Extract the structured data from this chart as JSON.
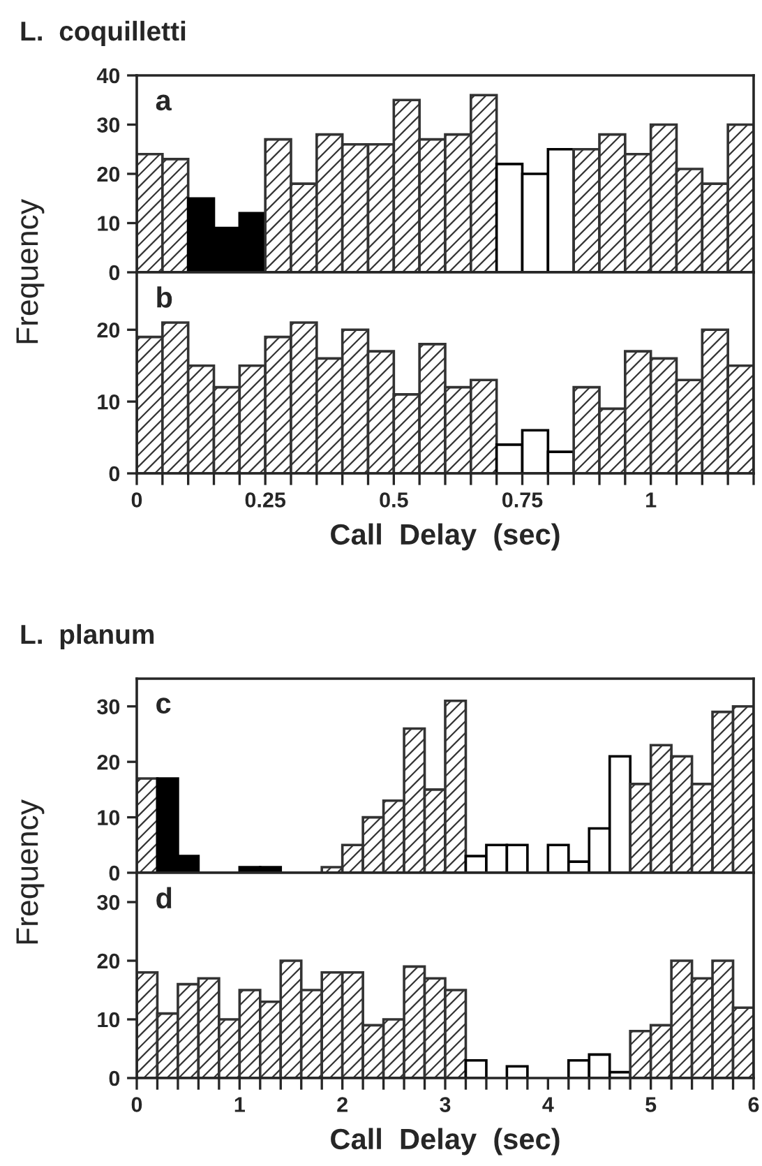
{
  "chart_data": [
    {
      "type": "histogram",
      "title": "L.  coquilletti",
      "annotations": [
        "a"
      ],
      "ylabel": "Frequency",
      "tick_labels": "y",
      "xlim": [
        0,
        1.2
      ],
      "ylim": [
        0,
        40
      ],
      "yticks": [
        0,
        10,
        20,
        30,
        40
      ],
      "bins": [
        0,
        0.05,
        0.1,
        0.15,
        0.2,
        0.25,
        0.3,
        0.35,
        0.4,
        0.45,
        0.5,
        0.55,
        0.6,
        0.65,
        0.7,
        0.75,
        0.8,
        0.85,
        0.9,
        0.95,
        1,
        1.05,
        1.1,
        1.15,
        1.2
      ],
      "values": [
        24,
        23,
        15,
        9,
        12,
        27,
        18,
        28,
        26,
        26,
        35,
        27,
        28,
        36,
        22,
        20,
        25,
        25,
        28,
        24,
        30,
        21,
        18,
        30
      ],
      "colors": [
        "#333333",
        "#333333",
        "#000000",
        "#000000",
        "#000000",
        "#333333",
        "#333333",
        "#333333",
        "#333333",
        "#333333",
        "#333333",
        "#333333",
        "#333333",
        "#333333",
        "#ffffff",
        "#ffffff",
        "#ffffff",
        "#333333",
        "#333333",
        "#333333",
        "#333333",
        "#333333",
        "#333333",
        "#333333"
      ]
    },
    {
      "type": "histogram",
      "annotations": [
        "b"
      ],
      "xlabel": "Call  Delay  (sec)",
      "xlim": [
        0,
        1.2
      ],
      "ylim": [
        0,
        28
      ],
      "yticks": [
        0,
        10,
        20
      ],
      "xticks": [
        0,
        {
          "value": 0.05,
          "label": null
        },
        {
          "value": 0.1,
          "label": null
        },
        {
          "value": 0.15,
          "label": null
        },
        {
          "value": 0.2,
          "label": null
        },
        0.25,
        {
          "value": 0.3,
          "label": null
        },
        {
          "value": 0.35,
          "label": null
        },
        {
          "value": 0.4,
          "label": null
        },
        {
          "value": 0.45,
          "label": null
        },
        0.5,
        {
          "value": 0.55,
          "label": null
        },
        {
          "value": 0.6,
          "label": null
        },
        {
          "value": 0.65,
          "label": null
        },
        {
          "value": 0.7,
          "label": null
        },
        0.75,
        {
          "value": 0.8,
          "label": null
        },
        {
          "value": 0.85,
          "label": null
        },
        {
          "value": 0.9,
          "label": null
        },
        {
          "value": 0.95,
          "label": null
        },
        1,
        {
          "value": 1.05,
          "label": null
        },
        {
          "value": 1.1,
          "label": null
        },
        {
          "value": 1.15,
          "label": null
        },
        {
          "value": 1.2,
          "label": null
        }
      ],
      "bins": [
        0,
        0.05,
        0.1,
        0.15,
        0.2,
        0.25,
        0.3,
        0.35,
        0.4,
        0.45,
        0.5,
        0.55,
        0.6,
        0.65,
        0.7,
        0.75,
        0.8,
        0.85,
        0.9,
        0.95,
        1,
        1.05,
        1.1,
        1.15,
        1.2
      ],
      "values": [
        19,
        21,
        15,
        12,
        15,
        19,
        21,
        16,
        20,
        17,
        11,
        18,
        12,
        13,
        4,
        6,
        3,
        12,
        9,
        17,
        16,
        13,
        20,
        15
      ],
      "colors": [
        "#333333",
        "#333333",
        "#333333",
        "#333333",
        "#333333",
        "#333333",
        "#333333",
        "#333333",
        "#333333",
        "#333333",
        "#333333",
        "#333333",
        "#333333",
        "#333333",
        "#ffffff",
        "#ffffff",
        "#ffffff",
        "#333333",
        "#333333",
        "#333333",
        "#333333",
        "#333333",
        "#333333",
        "#333333"
      ]
    },
    {
      "type": "histogram",
      "title": "L.  planum",
      "annotations": [
        "c"
      ],
      "ylabel": "Frequency",
      "tick_labels": "y",
      "xlim": [
        0,
        6
      ],
      "ylim": [
        0,
        35
      ],
      "yticks": [
        0,
        10,
        20,
        30
      ],
      "bins": [
        0,
        0.2,
        0.4,
        0.6,
        0.8,
        1,
        1.2,
        1.4,
        1.6,
        1.8,
        2,
        2.2,
        2.4,
        2.6,
        2.8,
        3,
        3.2,
        3.4,
        3.6,
        3.8,
        4,
        4.2,
        4.4,
        4.6,
        4.8,
        5,
        5.2,
        5.4,
        5.6,
        5.8,
        6
      ],
      "values": [
        17,
        17,
        3,
        0,
        0,
        1,
        1,
        0,
        0,
        1,
        5,
        10,
        13,
        26,
        15,
        31,
        3,
        5,
        5,
        0,
        5,
        2,
        8,
        21,
        16,
        23,
        21,
        16,
        29,
        30
      ],
      "colors": [
        "#333333",
        "#000000",
        "#000000",
        "#ffffff",
        "#ffffff",
        "#000000",
        "#000000",
        "#ffffff",
        "#ffffff",
        "#333333",
        "#333333",
        "#333333",
        "#333333",
        "#333333",
        "#333333",
        "#333333",
        "#ffffff",
        "#ffffff",
        "#ffffff",
        "#ffffff",
        "#ffffff",
        "#ffffff",
        "#ffffff",
        "#ffffff",
        "#333333",
        "#333333",
        "#333333",
        "#333333",
        "#333333",
        "#333333"
      ]
    },
    {
      "type": "histogram",
      "annotations": [
        "d"
      ],
      "xlabel": "Call  Delay  (sec)",
      "xlim": [
        0,
        6
      ],
      "ylim": [
        0,
        35
      ],
      "yticks": [
        0,
        10,
        20,
        30
      ],
      "xticks": [
        0,
        {
          "value": 0.2,
          "label": null
        },
        {
          "value": 0.4,
          "label": null
        },
        {
          "value": 0.6,
          "label": null
        },
        {
          "value": 0.8,
          "label": null
        },
        1,
        {
          "value": 1.2,
          "label": null
        },
        {
          "value": 1.4,
          "label": null
        },
        {
          "value": 1.6,
          "label": null
        },
        {
          "value": 1.8,
          "label": null
        },
        2,
        {
          "value": 2.2,
          "label": null
        },
        {
          "value": 2.4,
          "label": null
        },
        {
          "value": 2.6,
          "label": null
        },
        {
          "value": 2.8,
          "label": null
        },
        3,
        {
          "value": 3.2,
          "label": null
        },
        {
          "value": 3.4,
          "label": null
        },
        {
          "value": 3.6,
          "label": null
        },
        {
          "value": 3.8,
          "label": null
        },
        4,
        {
          "value": 4.2,
          "label": null
        },
        {
          "value": 4.4,
          "label": null
        },
        {
          "value": 4.6,
          "label": null
        },
        {
          "value": 4.8,
          "label": null
        },
        5,
        {
          "value": 5.2,
          "label": null
        },
        {
          "value": 5.4,
          "label": null
        },
        {
          "value": 5.6,
          "label": null
        },
        {
          "value": 5.8,
          "label": null
        },
        6
      ],
      "bins": [
        0,
        0.2,
        0.4,
        0.6,
        0.8,
        1,
        1.2,
        1.4,
        1.6,
        1.8,
        2,
        2.2,
        2.4,
        2.6,
        2.8,
        3,
        3.2,
        3.4,
        3.6,
        3.8,
        4,
        4.2,
        4.4,
        4.6,
        4.8,
        5,
        5.2,
        5.4,
        5.6,
        5.8,
        6
      ],
      "values": [
        18,
        11,
        16,
        17,
        10,
        15,
        13,
        20,
        15,
        18,
        18,
        9,
        10,
        19,
        17,
        15,
        3,
        0,
        2,
        0,
        0,
        3,
        4,
        1,
        8,
        9,
        20,
        17,
        20,
        12
      ],
      "colors": [
        "#333333",
        "#333333",
        "#333333",
        "#333333",
        "#333333",
        "#333333",
        "#333333",
        "#333333",
        "#333333",
        "#333333",
        "#333333",
        "#333333",
        "#333333",
        "#333333",
        "#333333",
        "#333333",
        "#ffffff",
        "#ffffff",
        "#ffffff",
        "#ffffff",
        "#ffffff",
        "#ffffff",
        "#ffffff",
        "#ffffff",
        "#333333",
        "#333333",
        "#333333",
        "#333333",
        "#333333",
        "#333333"
      ]
    }
  ]
}
